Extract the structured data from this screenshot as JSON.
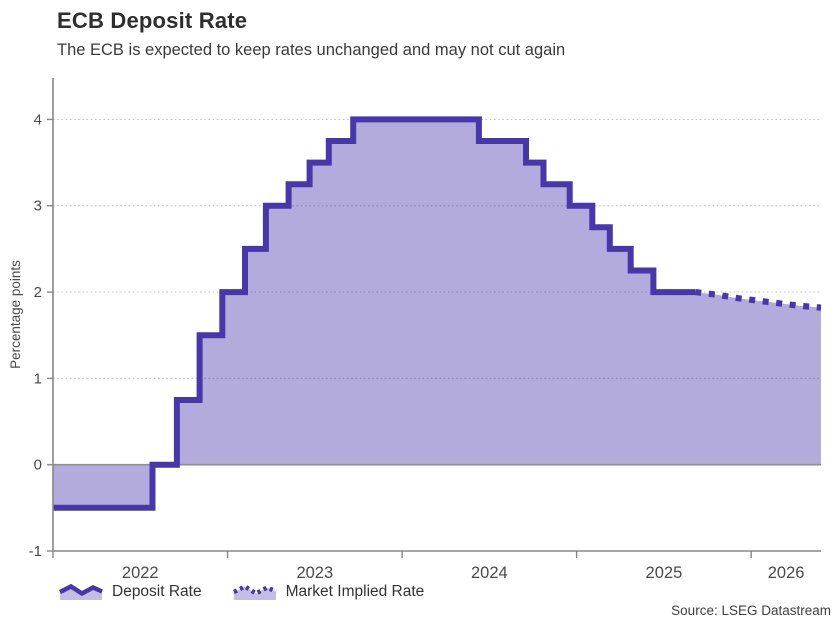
{
  "header": {
    "title": "ECB Deposit Rate",
    "subtitle": "The ECB is expected to keep rates unchanged and may not cut again"
  },
  "source": "Source: LSEG Datastream",
  "legend": {
    "deposit_rate_label": "Deposit Rate",
    "market_implied_label": "Market Implied Rate"
  },
  "colors": {
    "line": "#4836ab",
    "area_fill": "#b7abdf",
    "zero_line": "#8f8f8f",
    "gridline": "#c6c6c6",
    "axis": "#878787"
  },
  "chart_data": {
    "type": "area",
    "title": "ECB Deposit Rate",
    "subtitle": "The ECB is expected to keep rates unchanged and may not cut again",
    "xlabel": "",
    "ylabel": "Percentage points",
    "xlim": [
      2022.0,
      2026.4
    ],
    "ylim": [
      -1,
      4.48
    ],
    "x_ticks": [
      2022,
      2023,
      2024,
      2025,
      2026
    ],
    "y_ticks": [
      -1,
      0,
      1,
      2,
      3,
      4
    ],
    "grid": "dotted horizontal at 1,2,3,4; solid zero line",
    "legend_position": "bottom-left",
    "series": [
      {
        "name": "Deposit Rate",
        "style": "solid-step",
        "step_points_year_value": [
          [
            2022.0,
            -0.5
          ],
          [
            2022.57,
            0.0
          ],
          [
            2022.71,
            0.75
          ],
          [
            2022.84,
            1.5
          ],
          [
            2022.97,
            2.0
          ],
          [
            2023.1,
            2.5
          ],
          [
            2023.22,
            3.0
          ],
          [
            2023.35,
            3.25
          ],
          [
            2023.47,
            3.5
          ],
          [
            2023.58,
            3.75
          ],
          [
            2023.72,
            4.0
          ],
          [
            2024.44,
            3.75
          ],
          [
            2024.71,
            3.5
          ],
          [
            2024.81,
            3.25
          ],
          [
            2024.96,
            3.0
          ],
          [
            2025.09,
            2.75
          ],
          [
            2025.19,
            2.5
          ],
          [
            2025.31,
            2.25
          ],
          [
            2025.44,
            2.0
          ],
          [
            2025.68,
            2.0
          ]
        ]
      },
      {
        "name": "Market Implied Rate",
        "style": "dotted-line",
        "points_year_value": [
          [
            2025.68,
            2.0
          ],
          [
            2025.8,
            1.97
          ],
          [
            2025.92,
            1.93
          ],
          [
            2026.04,
            1.9
          ],
          [
            2026.16,
            1.87
          ],
          [
            2026.28,
            1.84
          ],
          [
            2026.4,
            1.82
          ]
        ]
      }
    ]
  }
}
